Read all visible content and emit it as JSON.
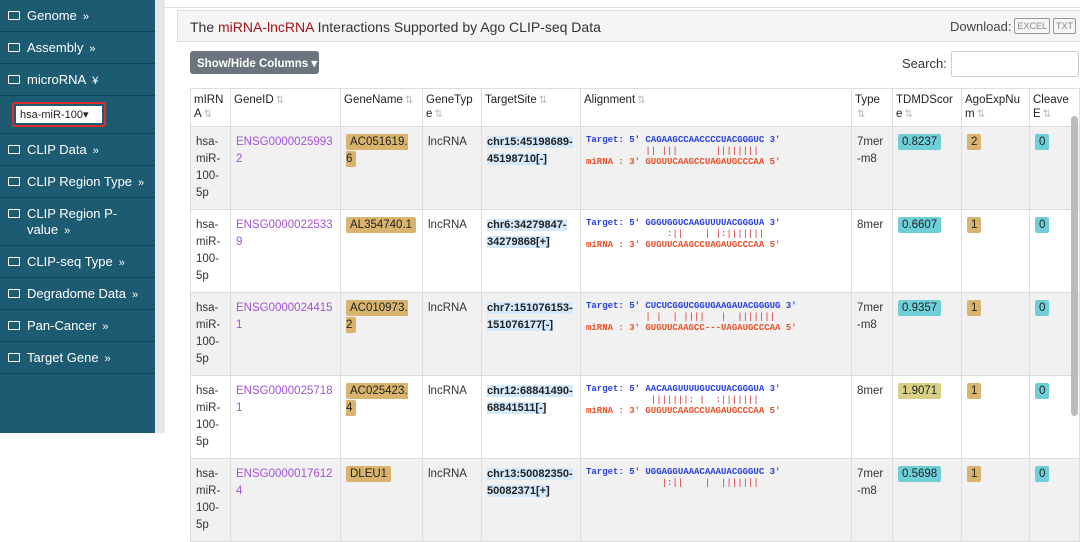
{
  "sidebar": {
    "items": [
      {
        "label": "Genome",
        "chevron": "»"
      },
      {
        "label": "Assembly",
        "chevron": "»"
      },
      {
        "label": "microRNA",
        "chevron": "¥"
      },
      {
        "label": "CLIP Data",
        "chevron": "»"
      },
      {
        "label": "CLIP Region Type",
        "chevron": "»"
      },
      {
        "label": "CLIP Region P-value",
        "chevron": "»"
      },
      {
        "label": "CLIP-seq Type",
        "chevron": "»"
      },
      {
        "label": "Degradome Data",
        "chevron": "»"
      },
      {
        "label": "Pan-Cancer",
        "chevron": "»"
      },
      {
        "label": "Target Gene",
        "chevron": "»"
      }
    ],
    "mirna_select": "hsa-miR-100"
  },
  "header": {
    "title_pre": "The ",
    "title_hl": "miRNA-lncRNA",
    "title_post": " Interactions Supported by Ago CLIP-seq Data",
    "download_label": "Download:",
    "excel": "EXCEL",
    "txt": "TXT"
  },
  "toolbar": {
    "show_hide": "Show/Hide Columns ▾",
    "search_label": "Search:",
    "search_value": ""
  },
  "table": {
    "columns": [
      "mIRNA",
      "GeneID",
      "GeneName",
      "GeneType",
      "TargetSite",
      "Alignment",
      "Type",
      "TDMDScore",
      "AgoExpNum",
      "CleaveE"
    ],
    "rows": [
      {
        "mirna": "hsa-miR-100-5p",
        "gene_id": "ENSG00000259932",
        "gene_name": "AC051619.6",
        "gene_type": "lncRNA",
        "target_site": "chr15:45198689-45198710[-]",
        "target": "Target: 5' CAGAAGCCAACCCCUACGGGUC 3'",
        "match": "           || |||       ||||||||",
        "mirna_seq": "miRNA : 3' GUGUUCAAGCCUAGAUGCCCAA 5'",
        "type": "7mer-m8",
        "tdmd": "0.8237",
        "tdmd_color": "#6fcfd8",
        "ago": "2",
        "cleave": "0"
      },
      {
        "mirna": "hsa-miR-100-5p",
        "gene_id": "ENSG00000225339",
        "gene_name": "AL354740.1",
        "gene_type": "lncRNA",
        "target_site": "chr6:34279847-34279868[+]",
        "target": "Target: 5' GGGUGGUCAAGUUUUACGGGUA 3'",
        "match": "               :||    | |:|||||||",
        "mirna_seq": "miRNA : 3' GUGUUCAAGCCUAGAUGCCCAA 5'",
        "type": "8mer",
        "tdmd": "0.6607",
        "tdmd_color": "#6fcfd8",
        "ago": "1",
        "cleave": "0"
      },
      {
        "mirna": "hsa-miR-100-5p",
        "gene_id": "ENSG00000244151",
        "gene_name": "AC010973.2",
        "gene_type": "lncRNA",
        "target_site": "chr7:151076153-151076177[-]",
        "target": "Target: 5' CUCUCGGUCGGUGAAGAUACGGGUG 3'",
        "match": "           | |  | ||||   |  |||||||",
        "mirna_seq": "miRNA : 3' GUGUUCAAGCC---UAGAUGCCCAA 5'",
        "type": "7mer-m8",
        "tdmd": "0.9357",
        "tdmd_color": "#6fcfd8",
        "ago": "1",
        "cleave": "0"
      },
      {
        "mirna": "hsa-miR-100-5p",
        "gene_id": "ENSG00000257181",
        "gene_name": "AC025423.4",
        "gene_type": "lncRNA",
        "target_site": "chr12:68841490-68841511[-]",
        "target": "Target: 5' AACAAGUUUUGUCUUACGGGUA 3'",
        "match": "            |||||||: |  :|||||||",
        "mirna_seq": "miRNA : 3' GUGUUCAAGCCUAGAUGCCCAA 5'",
        "type": "8mer",
        "tdmd": "1.9071",
        "tdmd_color": "#d8cf87",
        "ago": "1",
        "cleave": "0"
      },
      {
        "mirna": "hsa-miR-100-5p",
        "gene_id": "ENSG00000176124",
        "gene_name": "DLEU1",
        "gene_type": "lncRNA",
        "target_site": "chr13:50082350-50082371[+]",
        "target": "Target: 5' UGGAGGUAAACAAAUACGGGUC 3'",
        "match": "              |:||    |  |||||||",
        "mirna_seq": "",
        "type": "7mer-m8",
        "tdmd": "0.5698",
        "tdmd_color": "#6fcfd8",
        "ago": "1",
        "cleave": "0"
      }
    ]
  },
  "colors": {
    "sidebar": "#1d5b73",
    "ago_badge": "#d9b46e",
    "cleave_badge": "#6fcfd8"
  }
}
